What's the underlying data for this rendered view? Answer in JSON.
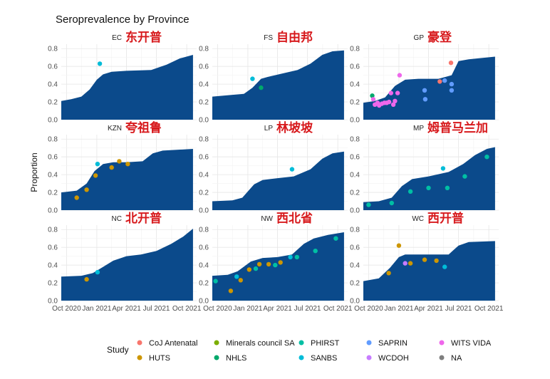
{
  "chart_data": {
    "type": "area",
    "title": "Seroprevalence by Province",
    "ylabel": "Proportion",
    "xlabel": "",
    "ylim": [
      0,
      0.85
    ],
    "y_ticks": [
      0.0,
      0.2,
      0.4,
      0.6,
      0.8
    ],
    "y_tick_labels": [
      "0.0",
      "0.2",
      "0.4",
      "0.6",
      "0.8"
    ],
    "xlim": [
      "2020-09-15",
      "2021-10-31"
    ],
    "x_ticks": [
      "2020-10-01",
      "2021-01-01",
      "2021-04-01",
      "2021-07-01",
      "2021-10-01"
    ],
    "x_tick_labels": [
      "Oct 2020",
      "Jan 2021",
      "Apr 2021",
      "Jul 2021",
      "Oct 2021"
    ],
    "grid": true,
    "area_color": "#0b4a8b",
    "legend_title": "Study",
    "legend_placement": "bottom",
    "studies": [
      {
        "name": "CoJ Antenatal",
        "color": "#f8766d"
      },
      {
        "name": "HUTS",
        "color": "#cd9600"
      },
      {
        "name": "Minerals council SA",
        "color": "#7cae00"
      },
      {
        "name": "NHLS",
        "color": "#00a86b"
      },
      {
        "name": "PHIRST",
        "color": "#00bfa4"
      },
      {
        "name": "SANBS",
        "color": "#00bcd8"
      },
      {
        "name": "SAPRIN",
        "color": "#619cff"
      },
      {
        "name": "WCDOH",
        "color": "#c77cff"
      },
      {
        "name": "WITS VIDA",
        "color": "#ef67eb"
      },
      {
        "name": "NA",
        "color": "#7f7f7f"
      }
    ],
    "panels": [
      {
        "code": "EC",
        "name_cn": "东开普",
        "area": [
          [
            "2020-09-15",
            0.21
          ],
          [
            "2020-10-15",
            0.23
          ],
          [
            "2020-11-15",
            0.26
          ],
          [
            "2020-12-10",
            0.34
          ],
          [
            "2021-01-01",
            0.45
          ],
          [
            "2021-01-20",
            0.51
          ],
          [
            "2021-02-15",
            0.54
          ],
          [
            "2021-04-01",
            0.55
          ],
          [
            "2021-06-15",
            0.56
          ],
          [
            "2021-08-01",
            0.62
          ],
          [
            "2021-09-10",
            0.69
          ],
          [
            "2021-10-20",
            0.73
          ]
        ],
        "points": [
          {
            "x": "2021-01-10",
            "y": 0.63,
            "study": "SANBS"
          }
        ]
      },
      {
        "code": "FS",
        "name_cn": "自由邦",
        "area": [
          [
            "2020-09-15",
            0.26
          ],
          [
            "2020-11-15",
            0.28
          ],
          [
            "2020-12-20",
            0.29
          ],
          [
            "2021-01-15",
            0.36
          ],
          [
            "2021-02-10",
            0.46
          ],
          [
            "2021-03-01",
            0.48
          ],
          [
            "2021-04-15",
            0.52
          ],
          [
            "2021-06-01",
            0.56
          ],
          [
            "2021-07-10",
            0.63
          ],
          [
            "2021-08-15",
            0.73
          ],
          [
            "2021-09-15",
            0.77
          ],
          [
            "2021-10-20",
            0.78
          ]
        ],
        "points": [
          {
            "x": "2021-01-15",
            "y": 0.46,
            "study": "SANBS"
          },
          {
            "x": "2021-02-10",
            "y": 0.36,
            "study": "NHLS"
          }
        ]
      },
      {
        "code": "GP",
        "name_cn": "豪登",
        "area": [
          [
            "2020-09-15",
            0.19
          ],
          [
            "2020-10-20",
            0.21
          ],
          [
            "2020-11-20",
            0.25
          ],
          [
            "2020-12-20",
            0.38
          ],
          [
            "2021-01-20",
            0.45
          ],
          [
            "2021-03-01",
            0.46
          ],
          [
            "2021-05-01",
            0.46
          ],
          [
            "2021-06-10",
            0.5
          ],
          [
            "2021-07-01",
            0.66
          ],
          [
            "2021-08-01",
            0.68
          ],
          [
            "2021-10-20",
            0.71
          ]
        ],
        "points": [
          {
            "x": "2020-10-12",
            "y": 0.27,
            "study": "NHLS"
          },
          {
            "x": "2020-10-15",
            "y": 0.23,
            "study": "WITS VIDA"
          },
          {
            "x": "2020-10-20",
            "y": 0.17,
            "study": "WITS VIDA"
          },
          {
            "x": "2020-10-28",
            "y": 0.19,
            "study": "WITS VIDA"
          },
          {
            "x": "2020-11-02",
            "y": 0.16,
            "study": "WITS VIDA"
          },
          {
            "x": "2020-11-10",
            "y": 0.18,
            "study": "WITS VIDA"
          },
          {
            "x": "2020-11-18",
            "y": 0.19,
            "study": "WITS VIDA"
          },
          {
            "x": "2020-11-25",
            "y": 0.19,
            "study": "WITS VIDA"
          },
          {
            "x": "2020-12-02",
            "y": 0.2,
            "study": "WITS VIDA"
          },
          {
            "x": "2020-12-08",
            "y": 0.3,
            "study": "WITS VIDA"
          },
          {
            "x": "2020-12-15",
            "y": 0.17,
            "study": "WITS VIDA"
          },
          {
            "x": "2020-12-20",
            "y": 0.21,
            "study": "WITS VIDA"
          },
          {
            "x": "2020-12-28",
            "y": 0.3,
            "study": "WITS VIDA"
          },
          {
            "x": "2021-01-03",
            "y": 0.5,
            "study": "WITS VIDA"
          },
          {
            "x": "2021-03-20",
            "y": 0.33,
            "study": "SAPRIN"
          },
          {
            "x": "2021-03-22",
            "y": 0.23,
            "study": "SAPRIN"
          },
          {
            "x": "2021-05-05",
            "y": 0.43,
            "study": "CoJ Antenatal"
          },
          {
            "x": "2021-05-20",
            "y": 0.44,
            "study": "SAPRIN"
          },
          {
            "x": "2021-06-08",
            "y": 0.64,
            "study": "CoJ Antenatal"
          },
          {
            "x": "2021-06-10",
            "y": 0.4,
            "study": "SAPRIN"
          },
          {
            "x": "2021-06-10",
            "y": 0.33,
            "study": "SAPRIN"
          }
        ]
      },
      {
        "code": "KZN",
        "name_cn": "夸祖鲁",
        "area": [
          [
            "2020-09-15",
            0.2
          ],
          [
            "2020-11-01",
            0.22
          ],
          [
            "2020-12-01",
            0.3
          ],
          [
            "2020-12-25",
            0.44
          ],
          [
            "2021-01-20",
            0.52
          ],
          [
            "2021-02-20",
            0.54
          ],
          [
            "2021-04-01",
            0.54
          ],
          [
            "2021-05-20",
            0.55
          ],
          [
            "2021-06-20",
            0.64
          ],
          [
            "2021-07-20",
            0.67
          ],
          [
            "2021-10-20",
            0.69
          ]
        ],
        "points": [
          {
            "x": "2020-11-01",
            "y": 0.14,
            "study": "HUTS"
          },
          {
            "x": "2020-12-01",
            "y": 0.23,
            "study": "HUTS"
          },
          {
            "x": "2020-12-28",
            "y": 0.39,
            "study": "HUTS"
          },
          {
            "x": "2021-01-03",
            "y": 0.52,
            "study": "SANBS"
          },
          {
            "x": "2021-02-15",
            "y": 0.48,
            "study": "HUTS"
          },
          {
            "x": "2021-03-10",
            "y": 0.55,
            "study": "HUTS"
          },
          {
            "x": "2021-04-05",
            "y": 0.52,
            "study": "HUTS"
          }
        ]
      },
      {
        "code": "LP",
        "name_cn": "林坡坡",
        "area": [
          [
            "2020-09-15",
            0.1
          ],
          [
            "2020-11-15",
            0.11
          ],
          [
            "2020-12-15",
            0.14
          ],
          [
            "2021-01-20",
            0.29
          ],
          [
            "2021-02-15",
            0.34
          ],
          [
            "2021-04-01",
            0.36
          ],
          [
            "2021-05-20",
            0.38
          ],
          [
            "2021-07-10",
            0.46
          ],
          [
            "2021-08-15",
            0.58
          ],
          [
            "2021-09-15",
            0.64
          ],
          [
            "2021-10-20",
            0.66
          ]
        ],
        "points": [
          {
            "x": "2021-05-15",
            "y": 0.46,
            "study": "SANBS"
          }
        ]
      },
      {
        "code": "MP",
        "name_cn": "姆普马兰加",
        "area": [
          [
            "2020-09-15",
            0.09
          ],
          [
            "2020-11-01",
            0.1
          ],
          [
            "2020-12-10",
            0.14
          ],
          [
            "2021-01-10",
            0.27
          ],
          [
            "2021-02-10",
            0.35
          ],
          [
            "2021-04-01",
            0.38
          ],
          [
            "2021-06-01",
            0.43
          ],
          [
            "2021-07-15",
            0.52
          ],
          [
            "2021-08-20",
            0.62
          ],
          [
            "2021-09-25",
            0.69
          ],
          [
            "2021-10-20",
            0.71
          ]
        ],
        "points": [
          {
            "x": "2020-10-01",
            "y": 0.06,
            "study": "PHIRST"
          },
          {
            "x": "2020-12-10",
            "y": 0.08,
            "study": "PHIRST"
          },
          {
            "x": "2021-02-05",
            "y": 0.21,
            "study": "PHIRST"
          },
          {
            "x": "2021-04-01",
            "y": 0.25,
            "study": "PHIRST"
          },
          {
            "x": "2021-05-15",
            "y": 0.47,
            "study": "SANBS"
          },
          {
            "x": "2021-05-28",
            "y": 0.25,
            "study": "PHIRST"
          },
          {
            "x": "2021-07-20",
            "y": 0.38,
            "study": "PHIRST"
          },
          {
            "x": "2021-09-25",
            "y": 0.6,
            "study": "PHIRST"
          }
        ]
      },
      {
        "code": "NC",
        "name_cn": "北开普",
        "area": [
          [
            "2020-09-15",
            0.27
          ],
          [
            "2020-11-15",
            0.28
          ],
          [
            "2020-12-20",
            0.31
          ],
          [
            "2021-01-20",
            0.38
          ],
          [
            "2021-02-20",
            0.45
          ],
          [
            "2021-04-01",
            0.5
          ],
          [
            "2021-05-15",
            0.52
          ],
          [
            "2021-07-01",
            0.56
          ],
          [
            "2021-08-15",
            0.64
          ],
          [
            "2021-09-20",
            0.72
          ],
          [
            "2021-10-20",
            0.81
          ]
        ],
        "points": [
          {
            "x": "2020-12-01",
            "y": 0.24,
            "study": "HUTS"
          },
          {
            "x": "2021-01-03",
            "y": 0.32,
            "study": "SANBS"
          }
        ]
      },
      {
        "code": "NW",
        "name_cn": "西北省",
        "area": [
          [
            "2020-09-15",
            0.28
          ],
          [
            "2020-11-01",
            0.29
          ],
          [
            "2020-12-01",
            0.33
          ],
          [
            "2021-01-10",
            0.44
          ],
          [
            "2021-02-15",
            0.48
          ],
          [
            "2021-04-01",
            0.49
          ],
          [
            "2021-05-15",
            0.52
          ],
          [
            "2021-06-20",
            0.64
          ],
          [
            "2021-07-20",
            0.7
          ],
          [
            "2021-09-01",
            0.74
          ],
          [
            "2021-10-20",
            0.77
          ]
        ],
        "points": [
          {
            "x": "2020-09-25",
            "y": 0.22,
            "study": "PHIRST"
          },
          {
            "x": "2020-11-10",
            "y": 0.11,
            "study": "HUTS"
          },
          {
            "x": "2020-11-28",
            "y": 0.27,
            "study": "SANBS"
          },
          {
            "x": "2020-12-10",
            "y": 0.23,
            "study": "HUTS"
          },
          {
            "x": "2021-01-05",
            "y": 0.35,
            "study": "HUTS"
          },
          {
            "x": "2021-01-25",
            "y": 0.36,
            "study": "PHIRST"
          },
          {
            "x": "2021-02-05",
            "y": 0.41,
            "study": "HUTS"
          },
          {
            "x": "2021-03-05",
            "y": 0.41,
            "study": "HUTS"
          },
          {
            "x": "2021-03-25",
            "y": 0.4,
            "study": "PHIRST"
          },
          {
            "x": "2021-04-10",
            "y": 0.43,
            "study": "HUTS"
          },
          {
            "x": "2021-05-10",
            "y": 0.49,
            "study": "SANBS"
          },
          {
            "x": "2021-05-30",
            "y": 0.49,
            "study": "PHIRST"
          },
          {
            "x": "2021-07-25",
            "y": 0.56,
            "study": "PHIRST"
          },
          {
            "x": "2021-09-25",
            "y": 0.7,
            "study": "PHIRST"
          }
        ]
      },
      {
        "code": "WC",
        "name_cn": "西开普",
        "area": [
          [
            "2020-09-15",
            0.22
          ],
          [
            "2020-11-01",
            0.25
          ],
          [
            "2020-12-05",
            0.37
          ],
          [
            "2021-01-01",
            0.49
          ],
          [
            "2021-01-20",
            0.52
          ],
          [
            "2021-03-01",
            0.52
          ],
          [
            "2021-06-01",
            0.52
          ],
          [
            "2021-07-01",
            0.62
          ],
          [
            "2021-08-01",
            0.66
          ],
          [
            "2021-10-20",
            0.67
          ]
        ],
        "points": [
          {
            "x": "2020-12-01",
            "y": 0.31,
            "study": "HUTS"
          },
          {
            "x": "2021-01-01",
            "y": 0.62,
            "study": "HUTS"
          },
          {
            "x": "2021-01-20",
            "y": 0.42,
            "study": "WCDOH"
          },
          {
            "x": "2021-02-05",
            "y": 0.42,
            "study": "HUTS"
          },
          {
            "x": "2021-03-20",
            "y": 0.46,
            "study": "HUTS"
          },
          {
            "x": "2021-04-25",
            "y": 0.45,
            "study": "HUTS"
          },
          {
            "x": "2021-05-20",
            "y": 0.38,
            "study": "SANBS"
          }
        ]
      }
    ]
  }
}
